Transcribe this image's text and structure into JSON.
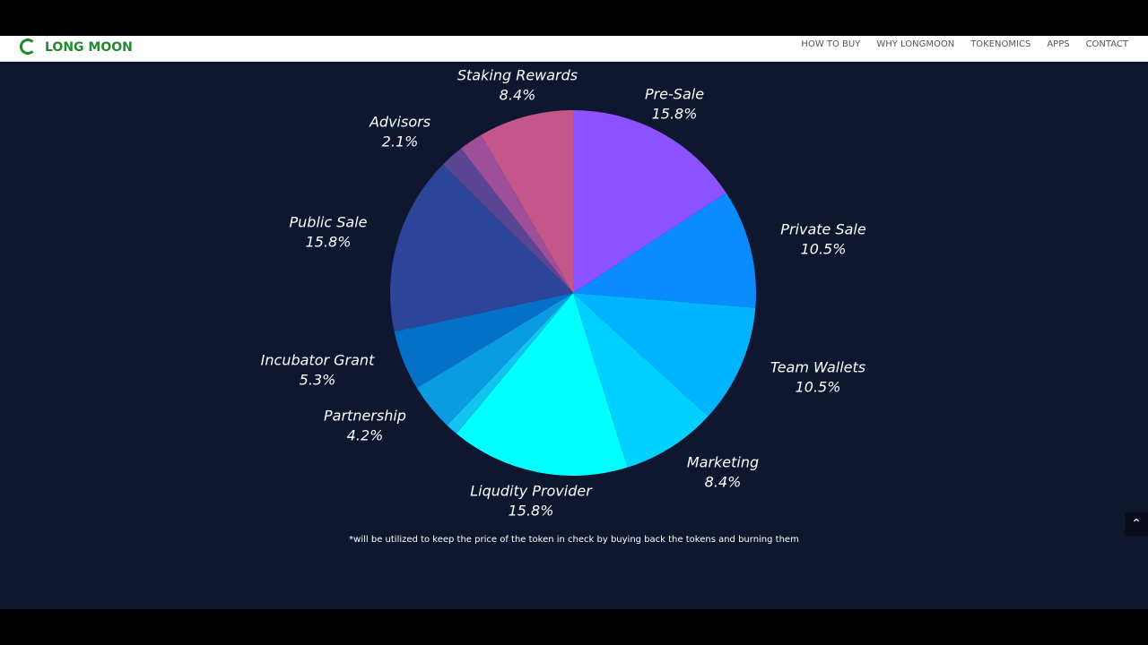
{
  "nav": {
    "logo": "LONG MOON",
    "items": [
      "HOW TO BUY",
      "WHY LONGMOON",
      "TOKENOMICS",
      "APPS",
      "CONTACT"
    ]
  },
  "chart_data": {
    "type": "pie",
    "categories": [
      "Pre-Sale",
      "Private Sale",
      "Team Wallets",
      "Marketing",
      "Liqudity Provider",
      null,
      "Partnership",
      "Incubator Grant",
      "Public Sale",
      null,
      "Advisors",
      "Staking Rewards"
    ],
    "values": [
      15.8,
      10.5,
      10.5,
      8.4,
      15.8,
      1.1,
      4.2,
      5.3,
      15.8,
      2.1,
      2.1,
      8.4
    ],
    "value_labels": [
      "15.8%",
      "10.5%",
      "10.5%",
      "8.4%",
      "15.8%",
      null,
      "4.2%",
      "5.3%",
      "15.8%",
      null,
      "2.1%",
      "8.4%"
    ],
    "colors": [
      "#8c52ff",
      "#0a8cff",
      "#00b4ff",
      "#00d0ff",
      "#00ffff",
      "#13c4f0",
      "#0a9be0",
      "#0570c8",
      "#2d4499",
      "#5a4694",
      "#9e4f9a",
      "#c4568a"
    ]
  },
  "footnote": "*will be utilized to keep the price of the token in check by buying back the tokens and burning them"
}
